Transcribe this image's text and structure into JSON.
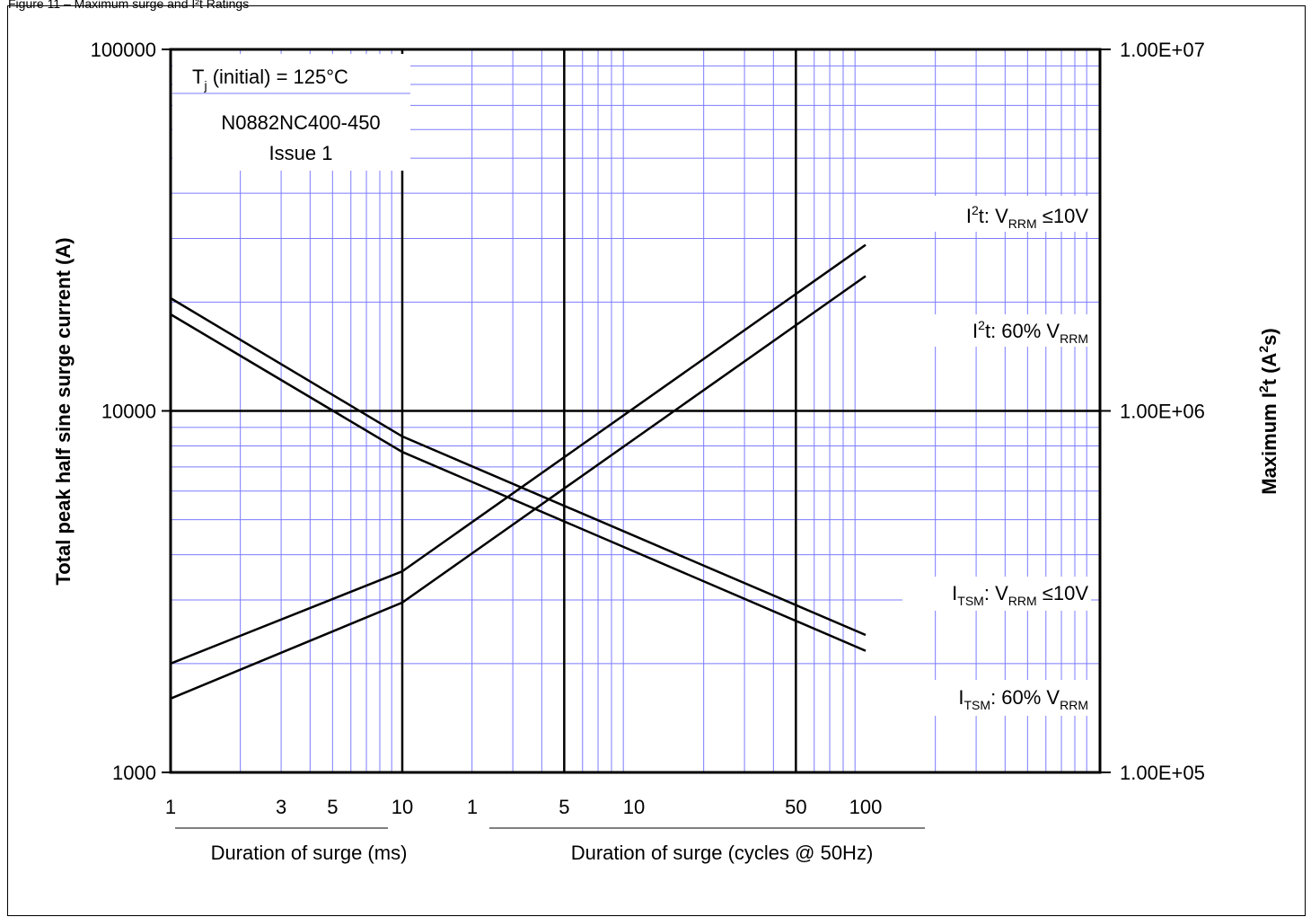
{
  "caption": "Figure 11 – Maximum surge and I²t Ratings",
  "chart_data": {
    "type": "line",
    "x_axis_segments": [
      {
        "unit": "ms",
        "range": [
          1,
          10
        ],
        "ticks": [
          1,
          3,
          5,
          10
        ],
        "label": "Duration of surge (ms)"
      },
      {
        "unit": "cycles @ 50Hz",
        "range": [
          1,
          100
        ],
        "ticks": [
          1,
          5,
          10,
          50,
          100
        ],
        "label": "Duration of surge (cycles @ 50Hz)"
      }
    ],
    "y_left": {
      "label": "Total peak half sine surge current (A)",
      "scale": "log",
      "range": [
        1000,
        100000
      ],
      "ticks": [
        "1000",
        "10000",
        "100000"
      ]
    },
    "y_right": {
      "label": "Maximum I²t (A²s)",
      "scale": "log",
      "range": [
        100000,
        10000000
      ],
      "ticks": [
        "1.00E+05",
        "1.00E+06",
        "1.00E+07"
      ]
    },
    "grid": true,
    "grid_color": "#7b7bff",
    "annotations": {
      "condition": "Tj (initial) = 125°C",
      "part_number": "N0882NC400-450",
      "issue": "Issue 1"
    },
    "series": [
      {
        "name": "I²t: VRRM ≤10V",
        "points": [
          [
            1,
            200000.0
          ],
          [
            10,
            360000.0
          ],
          [
            20,
            360000.0
          ],
          [
            2000,
            2880000.0
          ]
        ]
      },
      {
        "name": "I²t: 60% VRRM",
        "points": [
          [
            1,
            160000.0
          ],
          [
            10,
            295000.0
          ],
          [
            20,
            295000.0
          ],
          [
            2000,
            2360000.0
          ]
        ]
      },
      {
        "name": "ITSM: VRRM ≤10V",
        "points": [
          [
            1,
            20500
          ],
          [
            10,
            8500
          ],
          [
            20,
            8500
          ],
          [
            2000,
            2400
          ]
        ]
      },
      {
        "name": "ITSM: 60% VRRM",
        "points": [
          [
            1,
            18500
          ],
          [
            10,
            7700
          ],
          [
            20,
            7700
          ],
          [
            2000,
            2170
          ]
        ]
      }
    ]
  }
}
